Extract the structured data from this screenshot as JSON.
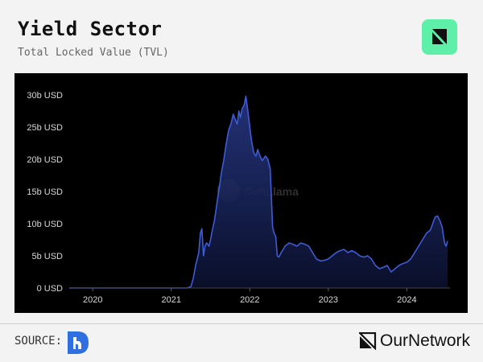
{
  "header": {
    "title": "Yield Sector",
    "subtitle": "Total Locked Value (TVL)"
  },
  "footer": {
    "source_label": "SOURCE:",
    "brand": "OurNetwork"
  },
  "watermark": "DefiLlama",
  "colors": {
    "line": "#3f5bd4",
    "fill_top": "#283a8a",
    "background": "#000000",
    "badge": "#5ef0a8"
  },
  "chart_data": {
    "type": "area",
    "ylim": [
      0,
      30
    ],
    "y_ticks": [
      0,
      5,
      10,
      15,
      20,
      25,
      30
    ],
    "y_tick_labels": [
      "0 USD",
      "5b USD",
      "10b USD",
      "15b USD",
      "20b USD",
      "25b USD",
      "30b USD"
    ],
    "xlim": [
      2019.7,
      2024.55
    ],
    "x_ticks": [
      2020,
      2021,
      2022,
      2023,
      2024
    ],
    "x_tick_labels": [
      "2020",
      "2021",
      "2022",
      "2023",
      "2024"
    ],
    "series": [
      {
        "x": [
          2019.7,
          2020.0,
          2020.5,
          2021.0,
          2021.2,
          2021.25,
          2021.28,
          2021.31,
          2021.33,
          2021.35,
          2021.37,
          2021.39,
          2021.41,
          2021.43,
          2021.45,
          2021.48,
          2021.5,
          2021.52,
          2021.55,
          2021.58,
          2021.61,
          2021.64,
          2021.67,
          2021.7,
          2021.73,
          2021.76,
          2021.79,
          2021.82,
          2021.84,
          2021.86,
          2021.88,
          2021.9,
          2021.93,
          2021.95,
          2021.97,
          2022.0,
          2022.02,
          2022.05,
          2022.08,
          2022.1,
          2022.13,
          2022.16,
          2022.2,
          2022.23,
          2022.26,
          2022.29,
          2022.31,
          2022.33,
          2022.35,
          2022.37,
          2022.4,
          2022.45,
          2022.5,
          2022.55,
          2022.6,
          2022.65,
          2022.7,
          2022.75,
          2022.8,
          2022.85,
          2022.9,
          2022.95,
          2023.0,
          2023.05,
          2023.1,
          2023.15,
          2023.2,
          2023.25,
          2023.3,
          2023.35,
          2023.4,
          2023.45,
          2023.5,
          2023.55,
          2023.6,
          2023.65,
          2023.7,
          2023.75,
          2023.8,
          2023.85,
          2023.9,
          2023.95,
          2024.0,
          2024.05,
          2024.1,
          2024.15,
          2024.2,
          2024.25,
          2024.3,
          2024.33,
          2024.36,
          2024.39,
          2024.42,
          2024.45,
          2024.48,
          2024.5,
          2024.52
        ],
        "y": [
          0,
          0,
          0,
          0,
          0,
          0.2,
          1.5,
          3.5,
          4.5,
          5.5,
          8.5,
          9.2,
          5.0,
          6.5,
          7.0,
          6.5,
          7.5,
          8.8,
          10.5,
          13.0,
          15.5,
          18.0,
          20.0,
          22.5,
          24.5,
          25.5,
          27.0,
          26.0,
          25.5,
          27.5,
          26.5,
          27.8,
          28.5,
          29.8,
          28.0,
          25.0,
          23.0,
          21.0,
          20.5,
          21.5,
          20.5,
          19.8,
          20.5,
          20.0,
          18.5,
          9.5,
          8.5,
          8.0,
          5.0,
          4.8,
          5.5,
          6.5,
          7.0,
          6.8,
          6.5,
          7.0,
          6.8,
          6.5,
          5.5,
          4.5,
          4.2,
          4.3,
          4.5,
          5.0,
          5.5,
          5.8,
          6.0,
          5.5,
          5.8,
          5.5,
          5.0,
          4.8,
          5.0,
          4.5,
          3.5,
          3.0,
          3.2,
          3.5,
          2.5,
          3.0,
          3.5,
          3.8,
          4.0,
          4.5,
          5.5,
          6.5,
          7.5,
          8.5,
          9.0,
          10.0,
          11.0,
          11.2,
          10.5,
          9.5,
          7.0,
          6.5,
          7.3
        ]
      }
    ]
  }
}
